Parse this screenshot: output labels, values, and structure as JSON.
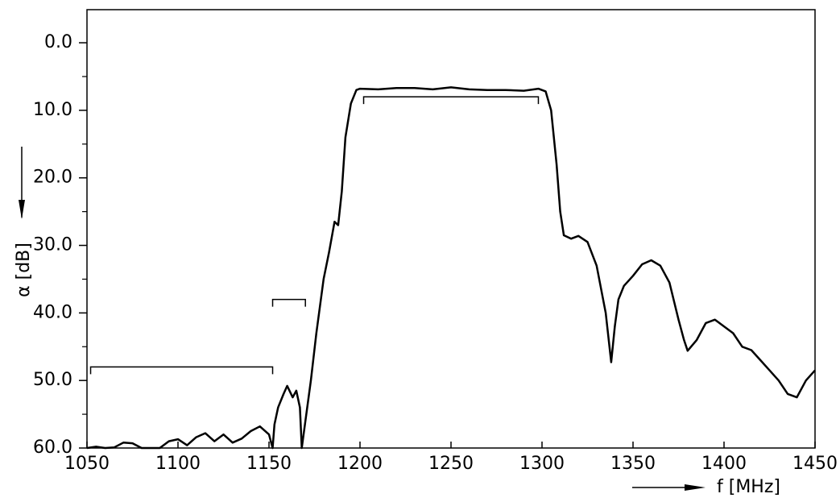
{
  "chart_data": {
    "type": "line",
    "xlabel": "f [MHz]",
    "ylabel": "α [dB]",
    "xlim": [
      1050,
      1450
    ],
    "ylim": [
      60,
      -4.9
    ],
    "xticks": [
      1050,
      1100,
      1150,
      1200,
      1250,
      1300,
      1350,
      1400,
      1450
    ],
    "yticks": [
      {
        "value": 0,
        "label": "0.0"
      },
      {
        "value": 10,
        "label": "10.0"
      },
      {
        "value": 20,
        "label": "20.0"
      },
      {
        "value": 30,
        "label": "30.0"
      },
      {
        "value": 40,
        "label": "40.0"
      },
      {
        "value": 50,
        "label": "50.0"
      },
      {
        "value": 60,
        "label": "60.0"
      }
    ],
    "yminorticks": [
      5,
      15,
      25,
      35,
      45,
      55
    ],
    "limits": [
      {
        "x": [
          1052,
          1152
        ],
        "y": 48
      },
      {
        "x": [
          1152,
          1170
        ],
        "y": 38
      },
      {
        "x": [
          1202,
          1298
        ],
        "y": 8
      }
    ],
    "series": [
      {
        "color": "#000000",
        "x": [
          1050,
          1055,
          1060,
          1065,
          1070,
          1075,
          1080,
          1090,
          1095,
          1100,
          1105,
          1110,
          1115,
          1120,
          1125,
          1130,
          1135,
          1140,
          1145,
          1150,
          1152,
          1153,
          1155,
          1158,
          1160,
          1163,
          1165,
          1167,
          1168,
          1170,
          1173,
          1176,
          1180,
          1183,
          1186,
          1188,
          1190,
          1192,
          1195,
          1198,
          1200,
          1210,
          1220,
          1230,
          1240,
          1250,
          1260,
          1270,
          1280,
          1290,
          1298,
          1302,
          1305,
          1308,
          1310,
          1312,
          1316,
          1320,
          1325,
          1330,
          1335,
          1338,
          1340,
          1342,
          1345,
          1350,
          1355,
          1360,
          1365,
          1370,
          1375,
          1378,
          1380,
          1385,
          1390,
          1395,
          1400,
          1405,
          1410,
          1415,
          1420,
          1425,
          1430,
          1435,
          1440,
          1445,
          1450
        ],
        "values": [
          60,
          59.8,
          60,
          59.9,
          59.2,
          59.3,
          60,
          60,
          59,
          58.7,
          59.6,
          58.4,
          57.8,
          59,
          58,
          59.2,
          58.6,
          57.5,
          56.8,
          58,
          60,
          56.5,
          54,
          52,
          50.8,
          52.5,
          51.5,
          54,
          60,
          56,
          50,
          43,
          35,
          31,
          26.5,
          27,
          22,
          14,
          9,
          7,
          6.8,
          6.9,
          6.7,
          6.7,
          6.9,
          6.6,
          6.9,
          7,
          7,
          7.1,
          6.8,
          7.2,
          10,
          18,
          25,
          28.5,
          29,
          28.6,
          29.5,
          33,
          40,
          47.3,
          42,
          38,
          36,
          34.5,
          32.8,
          32.2,
          33,
          35.5,
          41,
          44,
          45.6,
          44,
          41.5,
          41,
          42,
          43,
          45,
          45.5,
          47,
          48.5,
          50,
          52,
          52.5,
          50,
          48.5
        ]
      }
    ]
  }
}
